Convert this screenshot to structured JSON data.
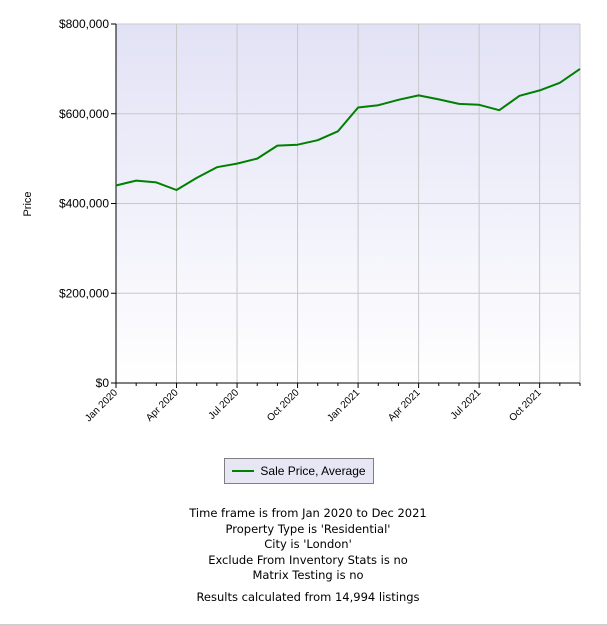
{
  "chart_data": {
    "type": "line",
    "title": "",
    "xlabel": "",
    "ylabel": "Price",
    "ylim": [
      0,
      800000
    ],
    "y_ticks": [
      {
        "value": 0,
        "label": "$0"
      },
      {
        "value": 200000,
        "label": "$200,000"
      },
      {
        "value": 400000,
        "label": "$400,000"
      },
      {
        "value": 600000,
        "label": "$600,000"
      },
      {
        "value": 800000,
        "label": "$800,000"
      }
    ],
    "x": [
      "Jan 2020",
      "Feb 2020",
      "Mar 2020",
      "Apr 2020",
      "May 2020",
      "Jun 2020",
      "Jul 2020",
      "Aug 2020",
      "Sep 2020",
      "Oct 2020",
      "Nov 2020",
      "Dec 2020",
      "Jan 2021",
      "Feb 2021",
      "Mar 2021",
      "Apr 2021",
      "May 2021",
      "Jun 2021",
      "Jul 2021",
      "Aug 2021",
      "Sep 2021",
      "Oct 2021",
      "Nov 2021",
      "Dec 2021"
    ],
    "x_tick_labels": [
      "Jan 2020",
      "Apr 2020",
      "Jul 2020",
      "Oct 2020",
      "Jan 2021",
      "Apr 2021",
      "Jul 2021",
      "Oct 2021"
    ],
    "grid": true,
    "legend": "bottom-center",
    "series": [
      {
        "name": "Sale Price, Average",
        "color": "#008000",
        "values": [
          440000,
          451000,
          447000,
          430000,
          457000,
          481000,
          489000,
          500000,
          529000,
          531000,
          541000,
          561000,
          614000,
          619000,
          631000,
          641000,
          632000,
          622000,
          620000,
          608000,
          640000,
          652000,
          669000,
          700000
        ]
      }
    ]
  },
  "notes": [
    "Time frame is from Jan 2020 to Dec 2021",
    "Property Type is 'Residential'",
    "City is 'London'",
    "Exclude From Inventory Stats is no",
    "Matrix Testing is no"
  ],
  "results": "Results calculated from 14,994 listings",
  "colors": {
    "plot_bg_top": "#e2e2f6",
    "plot_bg_bottom": "#ffffff",
    "grid": "#c8c8c8",
    "axis": "#000000"
  }
}
